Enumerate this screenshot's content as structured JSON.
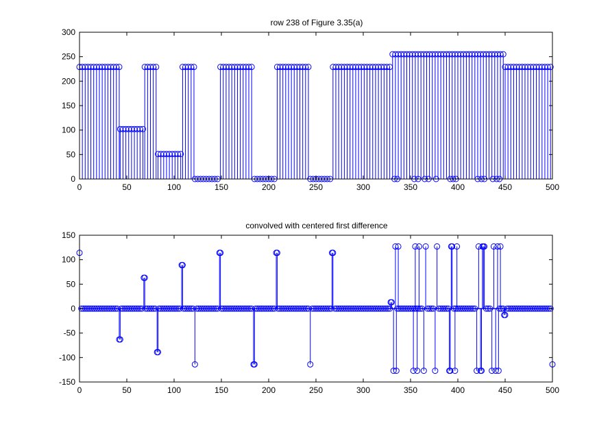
{
  "colors": {
    "series": "#0000ff",
    "axes": "#000000",
    "background": "#ffffff"
  },
  "chart_data": [
    {
      "type": "stem",
      "title": "row 238 of Figure 3.35(a)",
      "xlabel": "",
      "ylabel": "",
      "xlim": [
        0,
        500
      ],
      "ylim": [
        0,
        300
      ],
      "xticks": [
        0,
        50,
        100,
        150,
        200,
        250,
        300,
        350,
        400,
        450,
        500
      ],
      "yticks": [
        0,
        50,
        100,
        150,
        200,
        250,
        300
      ],
      "grid": false,
      "x_step": 3,
      "segments": [
        {
          "x_start": 0,
          "x_end": 42,
          "value": 229
        },
        {
          "x_start": 43,
          "x_end": 68,
          "value": 102
        },
        {
          "x_start": 69,
          "x_end": 82,
          "value": 229
        },
        {
          "x_start": 83,
          "x_end": 108,
          "value": 51
        },
        {
          "x_start": 109,
          "x_end": 121,
          "value": 229
        },
        {
          "x_start": 122,
          "x_end": 148,
          "value": 0
        },
        {
          "x_start": 149,
          "x_end": 184,
          "value": 229
        },
        {
          "x_start": 185,
          "x_end": 208,
          "value": 0
        },
        {
          "x_start": 209,
          "x_end": 243,
          "value": 229
        },
        {
          "x_start": 244,
          "x_end": 267,
          "value": 0
        },
        {
          "x_start": 268,
          "x_end": 330,
          "value": 229
        },
        {
          "x_start": 331,
          "x_end": 449,
          "value": 255
        },
        {
          "x_start": 450,
          "x_end": 500,
          "value": 229
        }
      ],
      "zero_points": [
        333,
        336,
        354,
        358,
        365,
        369,
        377,
        392,
        395,
        398,
        421,
        425,
        428,
        437,
        441,
        444
      ]
    },
    {
      "type": "stem",
      "title": "convolved with centered first difference",
      "xlabel": "",
      "ylabel": "",
      "xlim": [
        0,
        500
      ],
      "ylim": [
        -150,
        150
      ],
      "xticks": [
        0,
        50,
        100,
        150,
        200,
        250,
        300,
        350,
        400,
        450,
        500
      ],
      "yticks": [
        -150,
        -100,
        -50,
        0,
        50,
        100,
        150
      ],
      "grid": false,
      "baseline_range": [
        0,
        500
      ],
      "points": [
        {
          "x": 0,
          "y": 114
        },
        {
          "x": 42,
          "y": -63
        },
        {
          "x": 43,
          "y": -63
        },
        {
          "x": 68,
          "y": 63
        },
        {
          "x": 69,
          "y": 63
        },
        {
          "x": 82,
          "y": -89
        },
        {
          "x": 83,
          "y": -89
        },
        {
          "x": 108,
          "y": 89
        },
        {
          "x": 109,
          "y": 89
        },
        {
          "x": 122,
          "y": -114
        },
        {
          "x": 148,
          "y": 114
        },
        {
          "x": 149,
          "y": 114
        },
        {
          "x": 184,
          "y": -114
        },
        {
          "x": 185,
          "y": -114
        },
        {
          "x": 208,
          "y": 114
        },
        {
          "x": 209,
          "y": 114
        },
        {
          "x": 244,
          "y": -114
        },
        {
          "x": 267,
          "y": 114
        },
        {
          "x": 268,
          "y": 114
        },
        {
          "x": 329,
          "y": 13
        },
        {
          "x": 330,
          "y": 13
        },
        {
          "x": 332,
          "y": -127
        },
        {
          "x": 334,
          "y": 127
        },
        {
          "x": 335,
          "y": -127
        },
        {
          "x": 337,
          "y": 127
        },
        {
          "x": 353,
          "y": -127
        },
        {
          "x": 355,
          "y": 127
        },
        {
          "x": 357,
          "y": -127
        },
        {
          "x": 359,
          "y": 127
        },
        {
          "x": 364,
          "y": -127
        },
        {
          "x": 366,
          "y": 127
        },
        {
          "x": 376,
          "y": -127
        },
        {
          "x": 378,
          "y": 127
        },
        {
          "x": 391,
          "y": -127
        },
        {
          "x": 392,
          "y": -127
        },
        {
          "x": 393,
          "y": 127
        },
        {
          "x": 394,
          "y": 127
        },
        {
          "x": 397,
          "y": -127
        },
        {
          "x": 399,
          "y": 127
        },
        {
          "x": 420,
          "y": -127
        },
        {
          "x": 422,
          "y": 127
        },
        {
          "x": 424,
          "y": -127
        },
        {
          "x": 425,
          "y": -127
        },
        {
          "x": 426,
          "y": 127
        },
        {
          "x": 427,
          "y": 127
        },
        {
          "x": 428,
          "y": 127
        },
        {
          "x": 436,
          "y": -127
        },
        {
          "x": 438,
          "y": 127
        },
        {
          "x": 440,
          "y": -127
        },
        {
          "x": 442,
          "y": 127
        },
        {
          "x": 443,
          "y": -127
        },
        {
          "x": 445,
          "y": 127
        },
        {
          "x": 449,
          "y": -13
        },
        {
          "x": 450,
          "y": -13
        },
        {
          "x": 500,
          "y": -114
        }
      ]
    }
  ]
}
